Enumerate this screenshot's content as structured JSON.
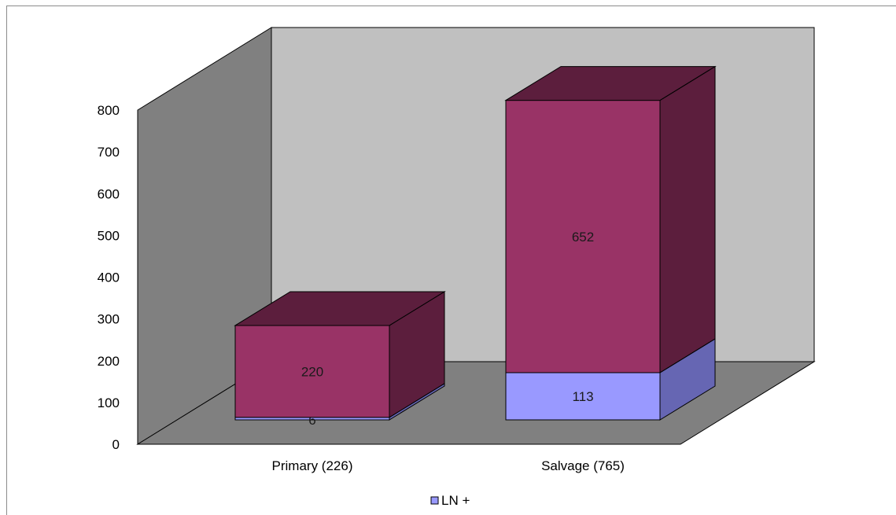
{
  "chart_data": {
    "type": "bar",
    "stacked": true,
    "three_d": true,
    "categories": [
      "Primary (226)",
      "Salvage (765)"
    ],
    "series": [
      {
        "name": "LN +",
        "values": [
          6,
          113
        ],
        "color": "#9999ff",
        "side_color": "#6666b3"
      },
      {
        "values": [
          220,
          652
        ],
        "color": "#993366",
        "side_color": "#5c1e3d"
      }
    ],
    "ylim": [
      0,
      800
    ],
    "yticks": [
      0,
      100,
      200,
      300,
      400,
      500,
      600,
      700,
      800
    ],
    "legend": {
      "position": "bottom",
      "entries": [
        "LN +"
      ]
    },
    "title": "",
    "xlabel": "",
    "ylabel": ""
  },
  "colors": {
    "back_wall": "#c0c0c0",
    "side_wall": "#808080",
    "floor": "#808080"
  }
}
